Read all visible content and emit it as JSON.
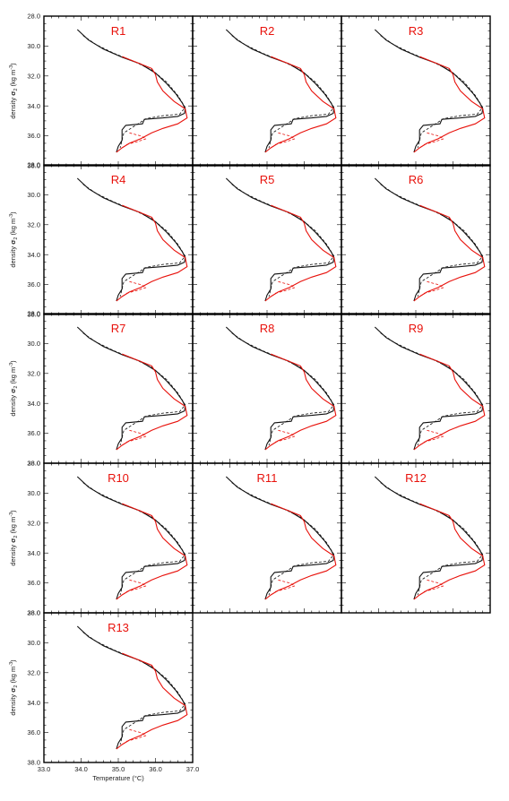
{
  "colors": {
    "red_series": "#e8120c",
    "black_series": "#111111",
    "frame": "#000000"
  },
  "chart_data": {
    "type": "line",
    "layout": "small-multiples",
    "panel_labels": [
      "R1",
      "R2",
      "R3",
      "R4",
      "R5",
      "R6",
      "R7",
      "R8",
      "R9",
      "R10",
      "R11",
      "R12",
      "R13"
    ],
    "xlabel": "Temperature (°C)",
    "ylabel": "density σ₂ (kg m⁻³)",
    "ylabel_parts": {
      "main": "density ",
      "sym": "σ",
      "sub": "2",
      "units": " (kg m",
      "sup": "-3",
      "close": ")"
    },
    "xlim": [
      33.0,
      37.0
    ],
    "ylim": [
      28.0,
      38.0
    ],
    "y_inverted": true,
    "x_ticks": [
      "33.0",
      "34.0",
      "35.0",
      "36.0",
      "37.0"
    ],
    "y_ticks": [
      "28.0",
      "30.0",
      "32.0",
      "34.0",
      "36.0",
      "38.0"
    ],
    "series": [
      {
        "style": "solid",
        "color": "black",
        "x": [
          33.9,
          34.2,
          34.6,
          35.1,
          35.6,
          36.0,
          36.3,
          36.55,
          36.72,
          36.8,
          36.78,
          36.6,
          36.2,
          35.7,
          35.65,
          35.2,
          35.1,
          35.1,
          35.0,
          34.95
        ],
        "y": [
          28.9,
          29.6,
          30.2,
          30.75,
          31.2,
          31.8,
          32.5,
          33.2,
          33.8,
          34.2,
          34.5,
          34.7,
          34.8,
          34.9,
          35.2,
          35.3,
          35.6,
          36.3,
          36.7,
          37.1
        ]
      },
      {
        "style": "dashed",
        "color": "black",
        "x": [
          34.05,
          34.4,
          34.9,
          35.4,
          35.9,
          36.3,
          36.6,
          36.8,
          36.65,
          36.2,
          35.75,
          35.4,
          35.15,
          35.1,
          35.05
        ],
        "y": [
          29.3,
          29.9,
          30.5,
          31.0,
          31.6,
          32.4,
          33.3,
          34.1,
          34.55,
          34.65,
          34.85,
          35.4,
          35.8,
          36.3,
          36.8
        ]
      },
      {
        "style": "solid",
        "color": "red",
        "x": [
          35.1,
          35.5,
          35.9,
          36.0,
          36.05,
          36.2,
          36.5,
          36.8,
          36.85,
          36.6,
          36.2,
          35.9,
          35.6,
          35.3,
          35.1,
          34.95
        ],
        "y": [
          30.7,
          31.1,
          31.5,
          31.9,
          32.4,
          33.0,
          33.7,
          34.2,
          34.8,
          35.2,
          35.5,
          35.8,
          36.2,
          36.5,
          36.8,
          37.1
        ]
      },
      {
        "style": "dashed",
        "color": "red",
        "x": [
          35.3,
          35.6,
          35.75,
          35.5,
          35.2
        ],
        "y": [
          35.8,
          36.0,
          36.2,
          36.4,
          36.6
        ]
      }
    ]
  }
}
